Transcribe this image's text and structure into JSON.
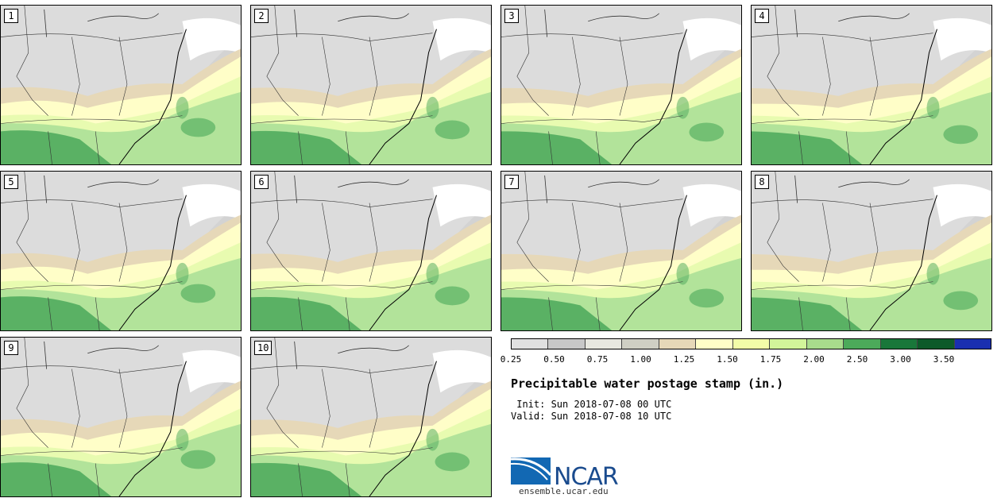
{
  "stamps": [
    {
      "label": "1"
    },
    {
      "label": "2"
    },
    {
      "label": "3"
    },
    {
      "label": "4"
    },
    {
      "label": "5"
    },
    {
      "label": "6"
    },
    {
      "label": "7"
    },
    {
      "label": "8"
    },
    {
      "label": "9"
    },
    {
      "label": "10"
    }
  ],
  "colorbar": {
    "segments": [
      "#e0e0e0",
      "#c8c8c8",
      "#e8e8e0",
      "#cfcfc4",
      "#e6d8b8",
      "#fffec8",
      "#f2fca8",
      "#d2f59a",
      "#a8dc8c",
      "#4caa5a",
      "#19773a",
      "#0d5a2a",
      "#1a2fb0"
    ],
    "ticks": [
      "0.25",
      "0.50",
      "0.75",
      "1.00",
      "1.25",
      "1.50",
      "1.75",
      "2.00",
      "2.50",
      "3.00",
      "3.50"
    ]
  },
  "title": "Precipitable water postage stamp (in.)",
  "init": " Init: Sun 2018-07-08 00 UTC",
  "valid": "Valid: Sun 2018-07-08 10 UTC",
  "logo": {
    "text": "NCAR",
    "url": "ensemble.ucar.edu"
  },
  "colors": {
    "gray": "#d3d3d3",
    "lightgray": "#e2e2e2",
    "tan": "#e6d8b8",
    "yellow": "#fffec8",
    "lightgreen": "#e8fbb0",
    "green": "#b2e39a",
    "darkgreen": "#4aa85a",
    "ocean": "#ffffff"
  }
}
